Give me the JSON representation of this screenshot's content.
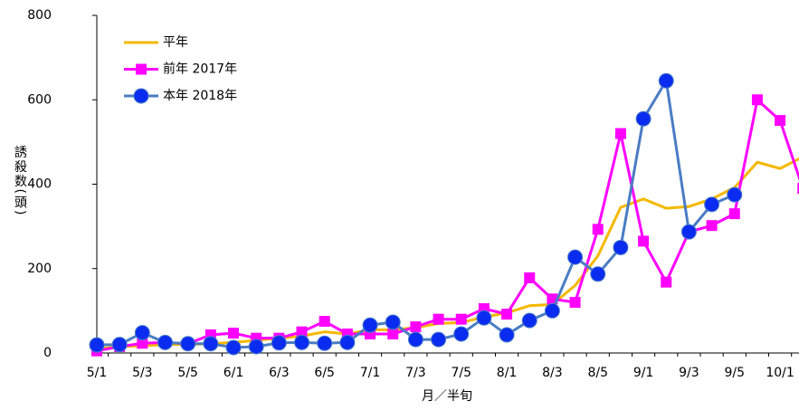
{
  "chart_data": {
    "type": "line",
    "xlabel": "月／半旬",
    "ylabel": "誘殺数(頭)",
    "categories": [
      "5/1",
      null,
      "5/3",
      null,
      "5/5",
      null,
      "6/1",
      null,
      "6/3",
      null,
      "6/5",
      null,
      "7/1",
      null,
      "7/3",
      null,
      "7/5",
      null,
      "8/1",
      null,
      "8/3",
      null,
      "8/5",
      null,
      "9/1",
      null,
      "9/3",
      null,
      "9/5",
      null,
      "10/1",
      null
    ],
    "series": [
      {
        "name": "平年",
        "color": "#f5b800",
        "marker": "none",
        "values": [
          10,
          15,
          17,
          20,
          20,
          22,
          25,
          30,
          35,
          40,
          50,
          45,
          55,
          55,
          60,
          70,
          72,
          85,
          95,
          112,
          115,
          160,
          230,
          345,
          365,
          343,
          347,
          365,
          392,
          452,
          437,
          465
        ]
      },
      {
        "name": "前年 2017年",
        "color": "#ff00ff",
        "marker": "square",
        "marker_color": "#ff00ff",
        "values": [
          5,
          15,
          23,
          25,
          22,
          43,
          47,
          35,
          35,
          50,
          75,
          45,
          45,
          45,
          62,
          80,
          80,
          105,
          92,
          178,
          128,
          120,
          293,
          520,
          265,
          168,
          287,
          302,
          330,
          600,
          551,
          390
        ]
      },
      {
        "name": "本年 2018年",
        "color": "#4a7cc4",
        "marker": "circle",
        "marker_color": "#0a2cf0",
        "values": [
          19,
          20,
          48,
          25,
          22,
          22,
          13,
          15,
          24,
          25,
          23,
          25,
          66,
          73,
          32,
          32,
          45,
          83,
          43,
          77,
          100,
          227,
          187,
          250,
          555,
          645,
          287,
          352,
          375,
          null,
          null,
          null
        ]
      }
    ],
    "ylim": [
      0,
      800
    ],
    "yticks": [
      0,
      200,
      400,
      600,
      800
    ],
    "grid": false,
    "legend": "upper left"
  }
}
